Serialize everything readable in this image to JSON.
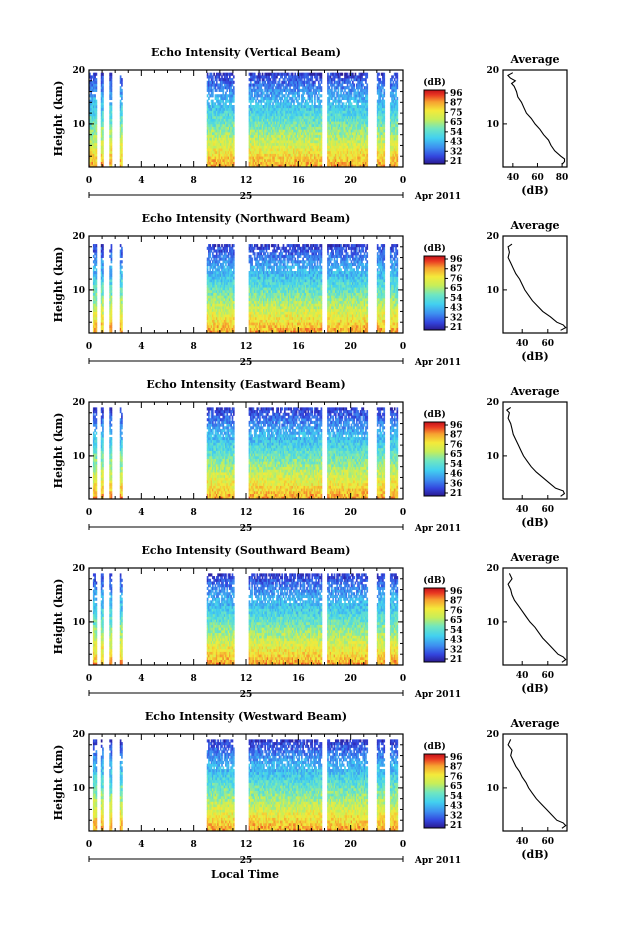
{
  "figure": {
    "x_axis_title": "Local Time",
    "date_day": "25",
    "date_label": "Apr 2011"
  },
  "chart_data": [
    {
      "type": "heatmap",
      "title": "Echo Intensity (Vertical Beam)",
      "ylabel": "Height (km)",
      "xlabel": "Local Time",
      "x_ticks": [
        "0",
        "4",
        "8",
        "12",
        "16",
        "20",
        "0"
      ],
      "y_ticks": [
        "20",
        "10"
      ],
      "xlim": [
        0,
        24
      ],
      "ylim": [
        2,
        20
      ],
      "colorbar": {
        "label": "(dB)",
        "ticks": [
          "96",
          "87",
          "75",
          "65",
          "54",
          "43",
          "32",
          "21"
        ],
        "range": [
          21,
          96
        ]
      },
      "data_blocks_hours": [
        [
          0,
          0.6
        ],
        [
          0.9,
          1.1
        ],
        [
          1.55,
          1.75
        ],
        [
          2.35,
          2.55
        ],
        [
          9.0,
          11.1
        ],
        [
          12.2,
          17.8
        ],
        [
          18.2,
          21.3
        ],
        [
          22.0,
          22.6
        ],
        [
          23.0,
          23.6
        ]
      ],
      "max_height_km": 19.5,
      "average": {
        "title": "Average",
        "xlabel": "(dB)",
        "x_ticks": [
          "40",
          "60",
          "80"
        ],
        "xlim": [
          32,
          84
        ],
        "ylim": [
          2,
          20
        ],
        "y_ticks": [
          "20",
          "10"
        ],
        "profile": [
          [
            19.5,
            40
          ],
          [
            19,
            36
          ],
          [
            18.5,
            38
          ],
          [
            18,
            42
          ],
          [
            17.5,
            39
          ],
          [
            17,
            41
          ],
          [
            16,
            43
          ],
          [
            15,
            44
          ],
          [
            14,
            47
          ],
          [
            13,
            49
          ],
          [
            12,
            51
          ],
          [
            11,
            55
          ],
          [
            10,
            58
          ],
          [
            9,
            62
          ],
          [
            8,
            65
          ],
          [
            7,
            69
          ],
          [
            6,
            71
          ],
          [
            5,
            74
          ],
          [
            4,
            79
          ],
          [
            3.5,
            82
          ],
          [
            3,
            82
          ],
          [
            2.5,
            80
          ]
        ]
      }
    },
    {
      "type": "heatmap",
      "title": "Echo Intensity (Northward Beam)",
      "ylabel": "Height (km)",
      "xlabel": "Local Time",
      "x_ticks": [
        "0",
        "4",
        "8",
        "12",
        "16",
        "20",
        "0"
      ],
      "y_ticks": [
        "20",
        "10"
      ],
      "xlim": [
        0,
        24
      ],
      "ylim": [
        2,
        20
      ],
      "colorbar": {
        "label": "(dB)",
        "ticks": [
          "96",
          "87",
          "76",
          "65",
          "54",
          "43",
          "32",
          "21"
        ],
        "range": [
          21,
          96
        ]
      },
      "data_blocks_hours": [
        [
          0.3,
          0.6
        ],
        [
          0.9,
          1.1
        ],
        [
          1.55,
          1.75
        ],
        [
          2.35,
          2.55
        ],
        [
          9.0,
          11.1
        ],
        [
          12.2,
          17.8
        ],
        [
          18.2,
          21.3
        ],
        [
          22.0,
          22.6
        ],
        [
          23.0,
          23.6
        ]
      ],
      "max_height_km": 18.5,
      "average": {
        "title": "Average",
        "xlabel": "(dB)",
        "x_ticks": [
          "40",
          "60"
        ],
        "xlim": [
          25,
          75
        ],
        "ylim": [
          2,
          20
        ],
        "y_ticks": [
          "20",
          "10"
        ],
        "profile": [
          [
            18.5,
            32
          ],
          [
            18,
            29
          ],
          [
            17,
            30
          ],
          [
            16,
            29
          ],
          [
            15,
            31
          ],
          [
            14,
            33
          ],
          [
            13,
            35
          ],
          [
            12,
            38
          ],
          [
            11,
            40
          ],
          [
            10,
            42
          ],
          [
            9,
            45
          ],
          [
            8,
            48
          ],
          [
            7,
            52
          ],
          [
            6,
            56
          ],
          [
            5,
            62
          ],
          [
            4,
            67
          ],
          [
            3.5,
            72
          ],
          [
            3,
            74
          ],
          [
            2.5,
            70
          ]
        ]
      }
    },
    {
      "type": "heatmap",
      "title": "Echo Intensity (Eastward Beam)",
      "ylabel": "Height (km)",
      "xlabel": "Local Time",
      "x_ticks": [
        "0",
        "4",
        "8",
        "12",
        "16",
        "20",
        "0"
      ],
      "y_ticks": [
        "20",
        "10"
      ],
      "xlim": [
        0,
        24
      ],
      "ylim": [
        2,
        20
      ],
      "colorbar": {
        "label": "(dB)",
        "ticks": [
          "96",
          "87",
          "76",
          "65",
          "54",
          "46",
          "36",
          "21"
        ],
        "range": [
          21,
          96
        ]
      },
      "data_blocks_hours": [
        [
          0.3,
          0.6
        ],
        [
          0.9,
          1.1
        ],
        [
          1.55,
          1.75
        ],
        [
          2.35,
          2.55
        ],
        [
          9.0,
          11.1
        ],
        [
          12.2,
          17.8
        ],
        [
          18.2,
          21.3
        ],
        [
          22.0,
          22.6
        ],
        [
          23.0,
          23.6
        ]
      ],
      "max_height_km": 19,
      "average": {
        "title": "Average",
        "xlabel": "(dB)",
        "x_ticks": [
          "40",
          "60"
        ],
        "xlim": [
          25,
          75
        ],
        "ylim": [
          2,
          20
        ],
        "y_ticks": [
          "20",
          "10"
        ],
        "profile": [
          [
            19,
            31
          ],
          [
            18.5,
            28
          ],
          [
            18,
            30
          ],
          [
            17,
            29
          ],
          [
            16,
            31
          ],
          [
            15,
            32
          ],
          [
            14,
            33
          ],
          [
            13,
            35
          ],
          [
            12,
            37
          ],
          [
            11,
            39
          ],
          [
            10,
            41
          ],
          [
            9,
            44
          ],
          [
            8,
            47
          ],
          [
            7,
            51
          ],
          [
            6,
            56
          ],
          [
            5,
            61
          ],
          [
            4,
            66
          ],
          [
            3.5,
            72
          ],
          [
            3,
            73
          ],
          [
            2.5,
            70
          ]
        ]
      }
    },
    {
      "type": "heatmap",
      "title": "Echo Intensity (Southward Beam)",
      "ylabel": "Height (km)",
      "xlabel": "Local Time",
      "x_ticks": [
        "0",
        "4",
        "8",
        "12",
        "16",
        "20",
        "0"
      ],
      "y_ticks": [
        "20",
        "10"
      ],
      "xlim": [
        0,
        24
      ],
      "ylim": [
        2,
        20
      ],
      "colorbar": {
        "label": "(dB)",
        "ticks": [
          "96",
          "87",
          "76",
          "65",
          "54",
          "43",
          "32",
          "21"
        ],
        "range": [
          21,
          96
        ]
      },
      "data_blocks_hours": [
        [
          0.3,
          0.6
        ],
        [
          0.9,
          1.1
        ],
        [
          1.55,
          1.75
        ],
        [
          2.35,
          2.55
        ],
        [
          9.0,
          11.1
        ],
        [
          12.2,
          17.8
        ],
        [
          18.2,
          21.3
        ],
        [
          22.0,
          22.6
        ],
        [
          23.0,
          23.6
        ]
      ],
      "max_height_km": 19,
      "average": {
        "title": "Average",
        "xlabel": "(dB)",
        "x_ticks": [
          "40",
          "60"
        ],
        "xlim": [
          25,
          75
        ],
        "ylim": [
          2,
          20
        ],
        "y_ticks": [
          "20",
          "10"
        ],
        "profile": [
          [
            19,
            30
          ],
          [
            18,
            32
          ],
          [
            17,
            29
          ],
          [
            16,
            31
          ],
          [
            15,
            32
          ],
          [
            14,
            34
          ],
          [
            13,
            37
          ],
          [
            12,
            40
          ],
          [
            11,
            43
          ],
          [
            10,
            46
          ],
          [
            9,
            50
          ],
          [
            8,
            53
          ],
          [
            7,
            56
          ],
          [
            6,
            60
          ],
          [
            5,
            64
          ],
          [
            4,
            68
          ],
          [
            3.5,
            72
          ],
          [
            3,
            74
          ],
          [
            2.5,
            71
          ]
        ]
      }
    },
    {
      "type": "heatmap",
      "title": "Echo Intensity (Westward Beam)",
      "ylabel": "Height (km)",
      "xlabel": "Local Time",
      "x_ticks": [
        "0",
        "4",
        "8",
        "12",
        "16",
        "20",
        "0"
      ],
      "y_ticks": [
        "20",
        "10"
      ],
      "xlim": [
        0,
        24
      ],
      "ylim": [
        2,
        20
      ],
      "colorbar": {
        "label": "(dB)",
        "ticks": [
          "96",
          "87",
          "76",
          "65",
          "54",
          "43",
          "32",
          "21"
        ],
        "range": [
          21,
          96
        ]
      },
      "data_blocks_hours": [
        [
          0.3,
          0.6
        ],
        [
          0.9,
          1.1
        ],
        [
          1.55,
          1.75
        ],
        [
          2.35,
          2.55
        ],
        [
          9.0,
          11.1
        ],
        [
          12.2,
          17.8
        ],
        [
          18.2,
          21.3
        ],
        [
          22.0,
          22.6
        ],
        [
          23.0,
          23.6
        ]
      ],
      "max_height_km": 19,
      "average": {
        "title": "Average",
        "xlabel": "(dB)",
        "x_ticks": [
          "40",
          "60"
        ],
        "xlim": [
          25,
          75
        ],
        "ylim": [
          2,
          20
        ],
        "y_ticks": [
          "20",
          "10"
        ],
        "profile": [
          [
            19,
            31
          ],
          [
            18,
            29
          ],
          [
            17,
            32
          ],
          [
            16,
            31
          ],
          [
            15,
            33
          ],
          [
            14,
            35
          ],
          [
            13,
            38
          ],
          [
            12,
            40
          ],
          [
            11,
            43
          ],
          [
            10,
            45
          ],
          [
            9,
            48
          ],
          [
            8,
            51
          ],
          [
            7,
            55
          ],
          [
            6,
            59
          ],
          [
            5,
            63
          ],
          [
            4,
            67
          ],
          [
            3.5,
            72
          ],
          [
            3,
            74
          ],
          [
            2.5,
            71
          ]
        ]
      }
    }
  ]
}
